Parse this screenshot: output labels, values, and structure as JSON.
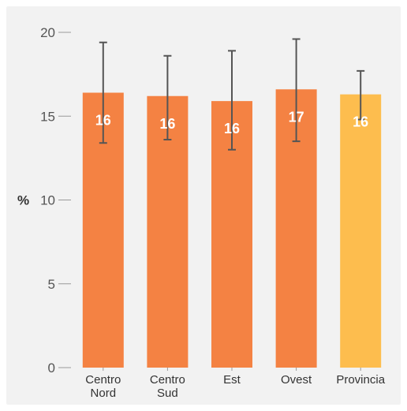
{
  "chart_data": {
    "type": "bar",
    "categories": [
      "Centro Nord",
      "Centro Sud",
      "Est",
      "Ovest",
      "Provincia"
    ],
    "category_lines": [
      [
        "Centro",
        "Nord"
      ],
      [
        "Centro",
        "Sud"
      ],
      [
        "Est"
      ],
      [
        "Ovest"
      ],
      [
        "Provincia"
      ]
    ],
    "values": [
      16.4,
      16.2,
      15.9,
      16.6,
      16.3
    ],
    "value_labels": [
      "16",
      "16",
      "16",
      "17",
      "16"
    ],
    "error_low": [
      13.4,
      13.6,
      13.0,
      13.5,
      14.8
    ],
    "error_high": [
      19.4,
      18.6,
      18.9,
      19.6,
      17.7
    ],
    "bar_colors": [
      "#f48243",
      "#f48243",
      "#f48243",
      "#f48243",
      "#fdbd4e"
    ],
    "ylabel": "%",
    "ylim": [
      0,
      20
    ],
    "yticks": [
      0,
      5,
      10,
      15,
      20
    ],
    "grid": false,
    "error_bar_color": "#555555",
    "tick_color": "#999999"
  }
}
